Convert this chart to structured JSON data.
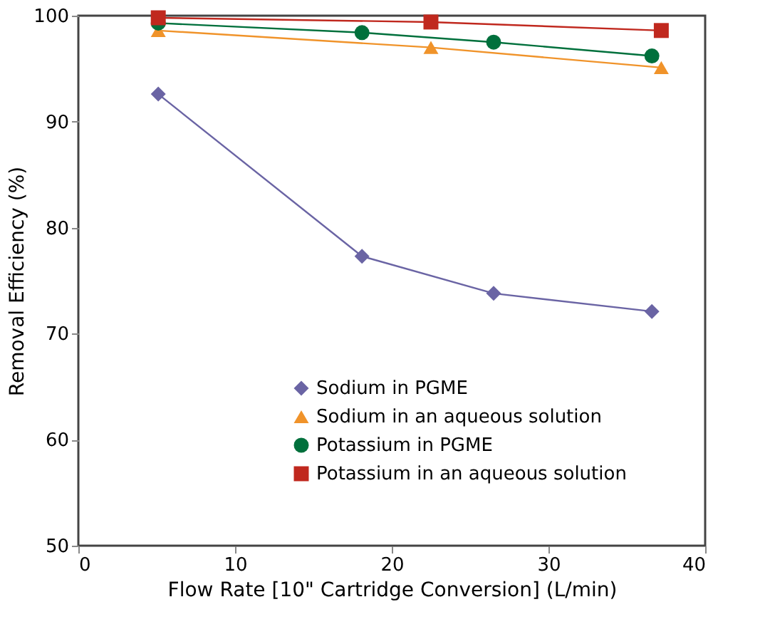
{
  "chart_data": {
    "type": "line",
    "xlabel": "Flow Rate [10\" Cartridge Conversion] (L/min)",
    "ylabel": "Removal Efficiency (%)",
    "xlim": [
      0,
      40
    ],
    "xticks": [
      0,
      10,
      20,
      30,
      40
    ],
    "ylim": [
      50,
      100
    ],
    "yticks": [
      50,
      60,
      70,
      80,
      90,
      100
    ],
    "grid": false,
    "legend": "bottom",
    "series": [
      {
        "name": "Sodium in PGME",
        "color": "#6a64a4",
        "marker": "diamond",
        "x": [
          5.1,
          18.1,
          26.5,
          36.6
        ],
        "values": [
          92.6,
          77.3,
          73.8,
          72.1
        ]
      },
      {
        "name": "Sodium in an aqueous solution",
        "color": "#f0932a",
        "marker": "triangle",
        "x": [
          5.1,
          22.5,
          37.2
        ],
        "values": [
          98.6,
          97.0,
          95.1
        ]
      },
      {
        "name": "Potassium in PGME",
        "color": "#00703c",
        "marker": "circle",
        "x": [
          5.1,
          18.1,
          26.5,
          36.6
        ],
        "values": [
          99.3,
          98.4,
          97.5,
          96.2
        ]
      },
      {
        "name": "Potassium in an aqueous solution",
        "color": "#c0281e",
        "marker": "square",
        "x": [
          5.1,
          22.5,
          37.2
        ],
        "values": [
          99.8,
          99.4,
          98.6
        ]
      }
    ]
  }
}
